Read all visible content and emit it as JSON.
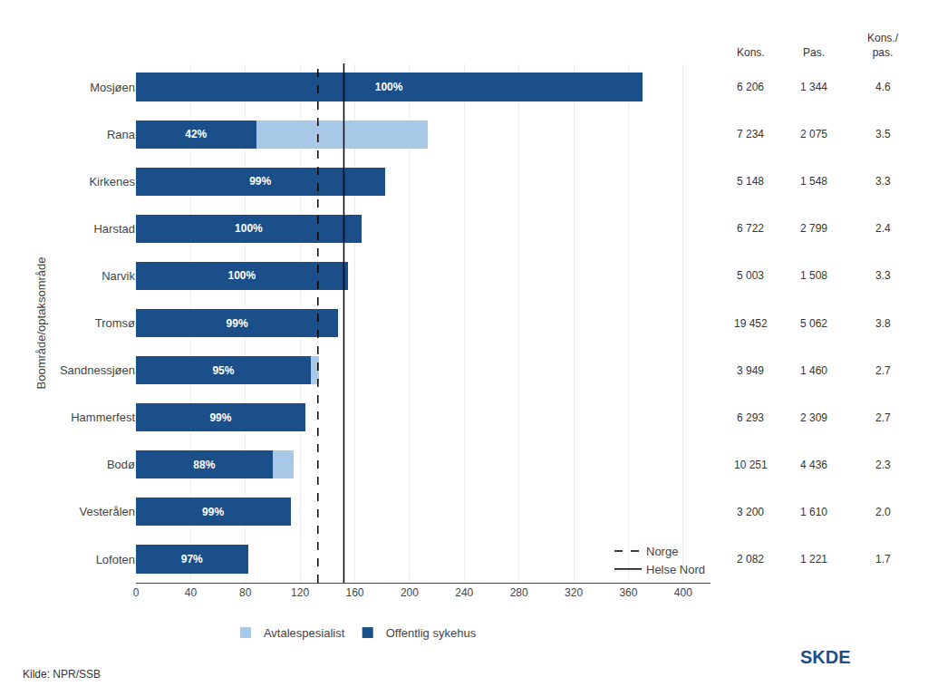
{
  "chart_data": {
    "type": "bar",
    "orientation": "horizontal",
    "stacked": true,
    "categories": [
      "Mosjøen",
      "Rana",
      "Kirkenes",
      "Harstad",
      "Narvik",
      "Tromsø",
      "Sandnessjøen",
      "Hammerfest",
      "Bodø",
      "Vesterålen",
      "Lofoten"
    ],
    "series": [
      {
        "name": "Offentlig sykehus",
        "color": "#1b4f8a",
        "values": [
          370,
          88,
          182,
          165,
          155,
          148,
          128,
          124,
          100,
          113,
          82
        ],
        "share_labels": [
          "100%",
          "42%",
          "99%",
          "100%",
          "100%",
          "99%",
          "95%",
          "99%",
          "88%",
          "99%",
          "97%"
        ]
      },
      {
        "name": "Avtalespesialist",
        "color": "#a8c8e8",
        "values": [
          0,
          125,
          0,
          0,
          0,
          0,
          6,
          0,
          15,
          0,
          0
        ]
      }
    ],
    "ylabel": "Boområde/optaksområde",
    "xlim": [
      0,
      420
    ],
    "xticks": [
      0,
      40,
      80,
      120,
      160,
      200,
      240,
      280,
      320,
      360,
      400
    ],
    "grid": true,
    "legend": "bottom",
    "reference_lines": {
      "legend": "lower right",
      "lines": [
        {
          "name": "Norge",
          "x": 133,
          "color": "#000000",
          "line_style": "dashed"
        },
        {
          "name": "Helse Nord",
          "x": 152,
          "color": "#000000",
          "line_style": "solid"
        }
      ]
    },
    "table": {
      "columns": [
        {
          "header": [
            "Kons."
          ],
          "values": [
            "6 206",
            "7 234",
            "5 148",
            "6 722",
            "5 003",
            "19 452",
            "3 949",
            "6 293",
            "10 251",
            "3 200",
            "2 082"
          ]
        },
        {
          "header": [
            "Pas."
          ],
          "values": [
            "1 344",
            "2 075",
            "1 548",
            "2 799",
            "1 508",
            "5 062",
            "1 460",
            "2 309",
            "4 436",
            "1 610",
            "1 221"
          ]
        },
        {
          "header": [
            "Kons./",
            "pas."
          ],
          "values": [
            "4.6",
            "3.5",
            "3.3",
            "2.4",
            "3.3",
            "3.8",
            "2.7",
            "2.7",
            "2.3",
            "2.0",
            "1.7"
          ]
        }
      ]
    },
    "source": "Kilde: NPR/SSB",
    "logo": {
      "text": "SKDE",
      "color": "#1b4f8a"
    }
  }
}
